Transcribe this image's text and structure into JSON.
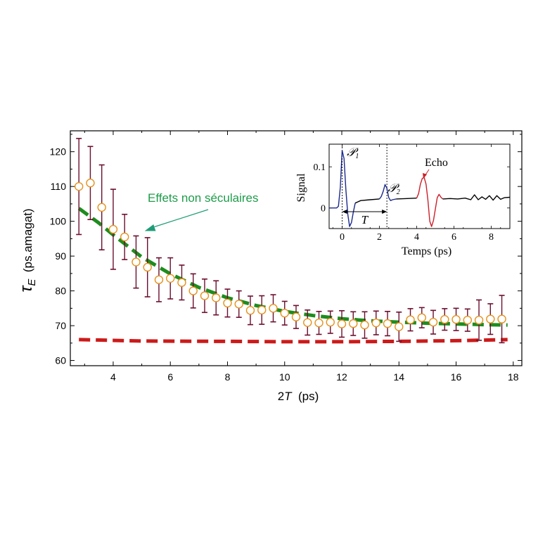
{
  "chart_data": [
    {
      "type": "scatter",
      "title": "",
      "xlabel": "2T  (ps)",
      "ylabel": "τE  (ps.amagat)",
      "xlim": [
        2.5,
        18.3
      ],
      "ylim": [
        58.5,
        126
      ],
      "xticks": [
        4,
        6,
        8,
        10,
        12,
        14,
        16,
        18
      ],
      "yticks": [
        60,
        70,
        80,
        90,
        100,
        110,
        120
      ],
      "grid": false,
      "series": [
        {
          "kind": "points-with-errorbars",
          "color": "#e5921e",
          "errorbar_color": "#6b0f2e",
          "x": [
            2.8,
            3.2,
            3.6,
            4.0,
            4.4,
            4.8,
            5.2,
            5.6,
            6.0,
            6.4,
            6.8,
            7.2,
            7.6,
            8.0,
            8.4,
            8.8,
            9.2,
            9.6,
            10.0,
            10.4,
            10.8,
            11.2,
            11.6,
            12.0,
            12.4,
            12.8,
            13.2,
            13.6,
            14.0,
            14.4,
            14.8,
            15.2,
            15.6,
            16.0,
            16.4,
            16.8,
            17.2,
            17.6
          ],
          "y": [
            110,
            111,
            104,
            97.7,
            95.5,
            88.3,
            86.8,
            83.2,
            83.6,
            82.4,
            80,
            78.6,
            78,
            76.5,
            76.2,
            74.4,
            74.5,
            75,
            73.6,
            72.5,
            70.9,
            70.8,
            71,
            70.5,
            70.6,
            70.2,
            70.8,
            70.6,
            69.7,
            71.7,
            72.3,
            71,
            71.8,
            71.8,
            71.6,
            71.6,
            71.9,
            71.9
          ],
          "err": [
            13.8,
            10.5,
            12.2,
            11.5,
            6.5,
            7.5,
            8.5,
            6.3,
            5.9,
            5.0,
            4.9,
            4.8,
            4.9,
            4.0,
            3.8,
            4.1,
            4.1,
            3.9,
            3.4,
            3.3,
            3.6,
            3.3,
            3.2,
            3.8,
            3.4,
            3.8,
            3.4,
            3.5,
            4.2,
            3.2,
            2.9,
            3.4,
            3.1,
            3.2,
            3.2,
            5.8,
            4.4,
            6.8
          ]
        },
        {
          "kind": "dashed-line",
          "color": "#1e8c1e",
          "x": [
            2.8,
            3.5,
            4.0,
            5.0,
            6.0,
            7.0,
            8.0,
            9.0,
            10.0,
            11.0,
            12.0,
            13.0,
            14.0,
            15.0,
            16.0,
            17.0,
            17.8
          ],
          "y": [
            103.7,
            99.5,
            96.1,
            89.7,
            84.9,
            81.0,
            78.0,
            75.8,
            74.1,
            72.9,
            72.0,
            71.4,
            71.0,
            70.7,
            70.5,
            70.3,
            70.2
          ]
        },
        {
          "kind": "dashed-line",
          "color": "#cc1a1a",
          "x": [
            2.8,
            5.0,
            8.0,
            10.0,
            12.0,
            14.0,
            16.0,
            17.8
          ],
          "y": [
            66.0,
            65.6,
            65.5,
            65.4,
            65.4,
            65.5,
            65.7,
            66.0
          ]
        }
      ],
      "annotations": [
        {
          "text": "Effets non séculaires",
          "color": "#1e9c4a",
          "arrow_color": "#1e9c78",
          "target": [
            5.1,
            97.2
          ]
        }
      ]
    },
    {
      "type": "line",
      "title": "",
      "xlabel": "Temps (ps)",
      "ylabel": "Signal",
      "xlim": [
        -0.7,
        9
      ],
      "ylim": [
        -0.05,
        0.155
      ],
      "xticks": [
        0,
        2,
        4,
        6,
        8
      ],
      "yticks": [
        0,
        0.1
      ],
      "ytick_labels": [
        "0",
        "0.1"
      ],
      "grid": false,
      "series": [
        {
          "segment": "P1",
          "color": "#1c2a8c",
          "x": [
            -0.7,
            -0.3,
            -0.2,
            -0.1,
            0.0,
            0.1,
            0.2,
            0.3,
            0.4,
            0.5,
            0.6,
            0.7
          ],
          "y": [
            0,
            0,
            0.004,
            0.05,
            0.14,
            0.12,
            0.045,
            -0.015,
            -0.045,
            -0.035,
            -0.01,
            0.012
          ]
        },
        {
          "segment": "flat",
          "color": "#000000",
          "x": [
            0.7,
            1.0,
            1.5,
            2.0
          ],
          "y": [
            0.012,
            0.018,
            0.02,
            0.022
          ]
        },
        {
          "segment": "P2",
          "color": "#1c2a8c",
          "x": [
            2.0,
            2.1,
            2.2,
            2.3,
            2.4,
            2.5,
            2.6,
            2.7,
            2.9
          ],
          "y": [
            0.022,
            0.028,
            0.04,
            0.057,
            0.048,
            0.025,
            0.018,
            0.02,
            0.022
          ]
        },
        {
          "segment": "flat",
          "color": "#000000",
          "x": [
            2.9,
            3.5,
            4.0
          ],
          "y": [
            0.022,
            0.023,
            0.024
          ]
        },
        {
          "segment": "echo",
          "color": "#cc1f2a",
          "x": [
            4.0,
            4.1,
            4.2,
            4.3,
            4.4,
            4.5,
            4.6,
            4.7,
            4.8,
            4.9,
            5.0,
            5.1,
            5.2,
            5.3,
            5.4
          ],
          "y": [
            0.024,
            0.035,
            0.058,
            0.072,
            0.074,
            0.058,
            0.02,
            -0.032,
            -0.045,
            -0.03,
            -0.003,
            0.025,
            0.033,
            0.026,
            0.022
          ]
        },
        {
          "segment": "tail",
          "color": "#000000",
          "x": [
            5.4,
            5.8,
            6.2,
            6.6,
            6.9,
            7.1,
            7.3,
            7.5,
            7.7,
            7.9,
            8.1,
            8.3,
            8.5,
            8.7,
            9.0
          ],
          "y": [
            0.022,
            0.023,
            0.022,
            0.024,
            0.02,
            0.032,
            0.02,
            0.027,
            0.021,
            0.03,
            0.019,
            0.03,
            0.021,
            0.025,
            0.026
          ]
        }
      ],
      "markers": [
        {
          "text": "𝒫",
          "sub": "1",
          "color": "#1c2a8c"
        },
        {
          "text": "𝒫",
          "sub": "2",
          "color": "#1c2a8c"
        },
        {
          "text": "Echo",
          "color": "#cc1f2a"
        },
        {
          "text": "T",
          "color": "#000000"
        }
      ],
      "vlines": [
        0,
        2.4
      ]
    }
  ]
}
